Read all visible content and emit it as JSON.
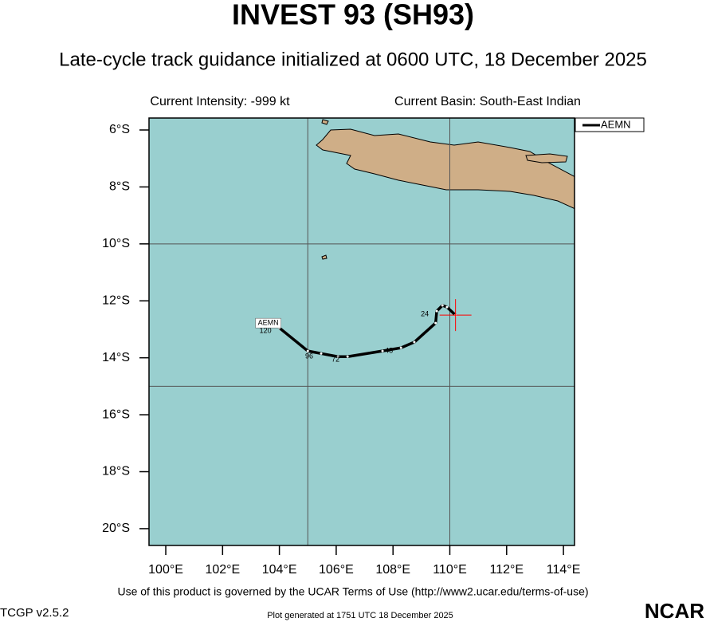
{
  "title": "INVEST 93 (SH93)",
  "subtitle": "Late-cycle track guidance initialized at 0600 UTC, 18 December 2025",
  "current_intensity": "Current Intensity: -999 kt",
  "current_basin": "Current Basin: South-East Indian",
  "terms": "Use of this product is governed by the UCAR Terms of Use (http://www2.ucar.edu/terms-of-use)",
  "version": "TCGP v2.5.2",
  "generated": "Plot generated at 1751 UTC   18 December 2025",
  "logo": "NCAR",
  "chart_data": {
    "type": "map",
    "xlim": [
      99.41,
      114.39
    ],
    "ylim": [
      -20.59,
      -5.58
    ],
    "xticks": [
      {
        "value": 100,
        "label": "100°E"
      },
      {
        "value": 102,
        "label": "102°E"
      },
      {
        "value": 104,
        "label": "104°E"
      },
      {
        "value": 106,
        "label": "106°E"
      },
      {
        "value": 108,
        "label": "108°E"
      },
      {
        "value": 110,
        "label": "110°E"
      },
      {
        "value": 112,
        "label": "112°E"
      },
      {
        "value": 114,
        "label": "114°E"
      }
    ],
    "yticks": [
      {
        "value": -6,
        "label": "6°S"
      },
      {
        "value": -8,
        "label": "8°S"
      },
      {
        "value": -10,
        "label": "10°S"
      },
      {
        "value": -12,
        "label": "12°S"
      },
      {
        "value": -14,
        "label": "14°S"
      },
      {
        "value": -16,
        "label": "16°S"
      },
      {
        "value": -18,
        "label": "18°S"
      },
      {
        "value": -20,
        "label": "20°S"
      }
    ],
    "grid_x": [
      105,
      110
    ],
    "grid_y": [
      -10,
      -15
    ],
    "ocean_color": "#99cfcf",
    "land_color": "#cfae87",
    "series": [
      {
        "name": "AEMN",
        "color": "#000000",
        "x": [
          104.0,
          105.0,
          105.47,
          106.06,
          106.4,
          107.63,
          108.28,
          108.75,
          109.5,
          109.54,
          109.74,
          109.9,
          110.2
        ],
        "values": [
          -12.95,
          -13.76,
          -13.85,
          -13.96,
          -13.96,
          -13.76,
          -13.65,
          -13.45,
          -12.78,
          -12.36,
          -12.16,
          -12.22,
          -12.5
        ],
        "taus": [
          120,
          null,
          96,
          null,
          72,
          null,
          48,
          null,
          null,
          24,
          null,
          null,
          null
        ]
      }
    ],
    "current_position": {
      "x": 110.2,
      "y": -12.5,
      "color": "#ff0000"
    },
    "legend": "top-right"
  }
}
